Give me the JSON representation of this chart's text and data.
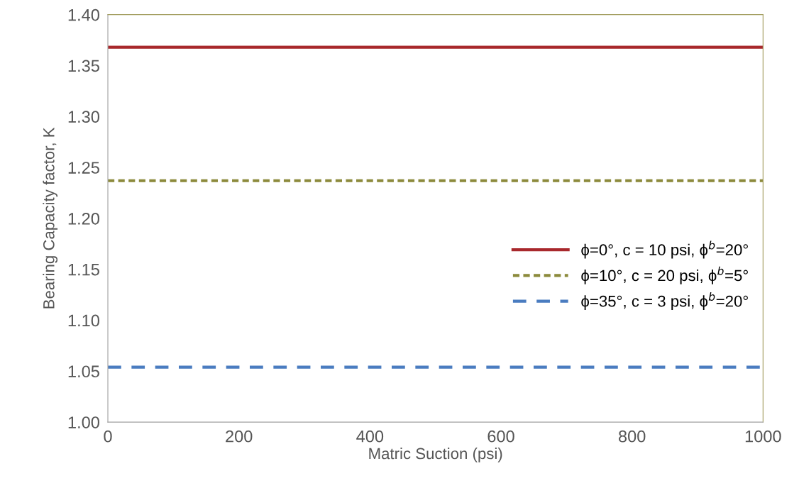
{
  "chart_data": {
    "type": "line",
    "xlabel": "Matric Suction (psi)",
    "ylabel": "Bearing Capacity factor, K",
    "x": [
      0,
      1000
    ],
    "series": [
      {
        "name": "ϕ=0°, c = 10 psi, ϕ$^{b}$=20°",
        "color": "#a8282c",
        "values": [
          1.368,
          1.368
        ],
        "line_style": "solid"
      },
      {
        "name": "ϕ=10°, c = 20 psi, ϕ$^{b}$=5°",
        "color": "#8c8a3c",
        "values": [
          1.237,
          1.237
        ],
        "line_style": "dotted"
      },
      {
        "name": "ϕ=35°, c = 3 psi, ϕ$^{b}$=20°",
        "color": "#4a7cc0",
        "values": [
          1.054,
          1.054
        ],
        "line_style": "dashed"
      }
    ],
    "xlim": [
      0,
      1000
    ],
    "xticks": [
      0,
      200,
      400,
      600,
      800,
      1000
    ],
    "ylim": [
      1.0,
      1.4
    ],
    "yticks": [
      {
        "value": 1.0,
        "label": "1.00"
      },
      {
        "value": 1.05,
        "label": "1.05"
      },
      {
        "value": 1.1,
        "label": "1.10"
      },
      {
        "value": 1.15,
        "label": "1.15"
      },
      {
        "value": 1.2,
        "label": "1.20"
      },
      {
        "value": 1.25,
        "label": "1.25"
      },
      {
        "value": 1.3,
        "label": "1.30"
      },
      {
        "value": 1.35,
        "label": "1.35"
      },
      {
        "value": 1.4,
        "label": "1.40"
      }
    ],
    "grid": false,
    "legend": "right",
    "marker": "none"
  }
}
